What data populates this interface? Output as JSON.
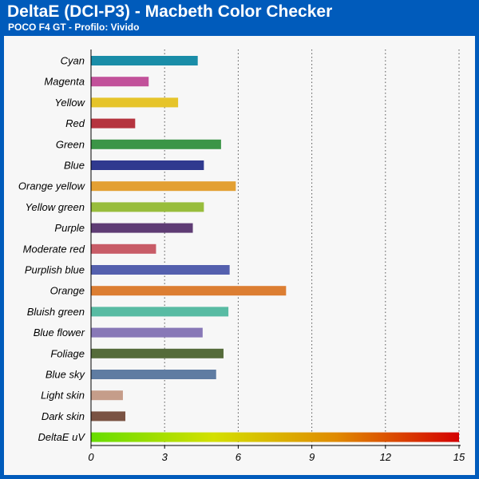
{
  "header": {
    "title": "DeltaE (DCI-P3) - Macbeth Color Checker",
    "subtitle": "POCO F4 GT - Profilo: Vivido"
  },
  "chart_data": {
    "type": "bar",
    "orientation": "horizontal",
    "title": "DeltaE (DCI-P3) - Macbeth Color Checker",
    "subtitle": "POCO F4 GT - Profilo: Vivido",
    "xlabel": "",
    "ylabel": "",
    "xlim": [
      0,
      15
    ],
    "xticks": [
      0,
      3,
      6,
      9,
      12,
      15
    ],
    "grid": "vertical dotted",
    "legend": "none",
    "categories": [
      "Cyan",
      "Magenta",
      "Yellow",
      "Red",
      "Green",
      "Blue",
      "Orange yellow",
      "Yellow green",
      "Purple",
      "Moderate red",
      "Purplish blue",
      "Orange",
      "Bluish green",
      "Blue flower",
      "Foliage",
      "Blue sky",
      "Light skin",
      "Dark skin",
      "DeltaE uV"
    ],
    "values": [
      4.35,
      2.35,
      3.55,
      1.8,
      5.3,
      4.6,
      5.9,
      4.6,
      4.15,
      2.65,
      5.65,
      7.95,
      5.6,
      4.55,
      5.4,
      5.1,
      1.3,
      1.4,
      15
    ],
    "colors": [
      "#1a8da8",
      "#c2519a",
      "#e6c42a",
      "#b5343f",
      "#3b9547",
      "#303a8f",
      "#e3a033",
      "#98bd3c",
      "#5e3c74",
      "#c85c67",
      "#5460ae",
      "#dc7e32",
      "#58bba3",
      "#8878b7",
      "#556b3a",
      "#5f7ca2",
      "#c59d8a",
      "#7a5343",
      "gradient"
    ],
    "gradient_stops": [
      "#66dd00",
      "#d4e000",
      "#e08a00",
      "#d40000"
    ]
  }
}
